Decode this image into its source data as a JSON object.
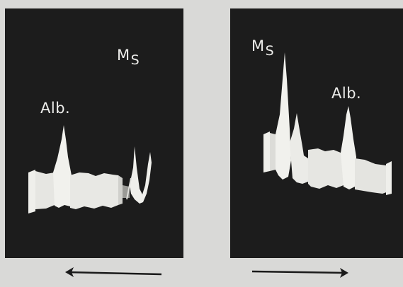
{
  "panels": [
    {
      "label_alb": "Alb.",
      "label_ms": {
        "main": "M",
        "sub": "S"
      },
      "arrow_direction": "left"
    },
    {
      "label_alb": "Alb.",
      "label_ms": {
        "main": "M",
        "sub": "S"
      },
      "arrow_direction": "right"
    }
  ],
  "colors": {
    "background": "#d9d9d7",
    "panel": "#1c1c1c",
    "trace": "#efefeb",
    "arrow": "#1a1a1a"
  }
}
